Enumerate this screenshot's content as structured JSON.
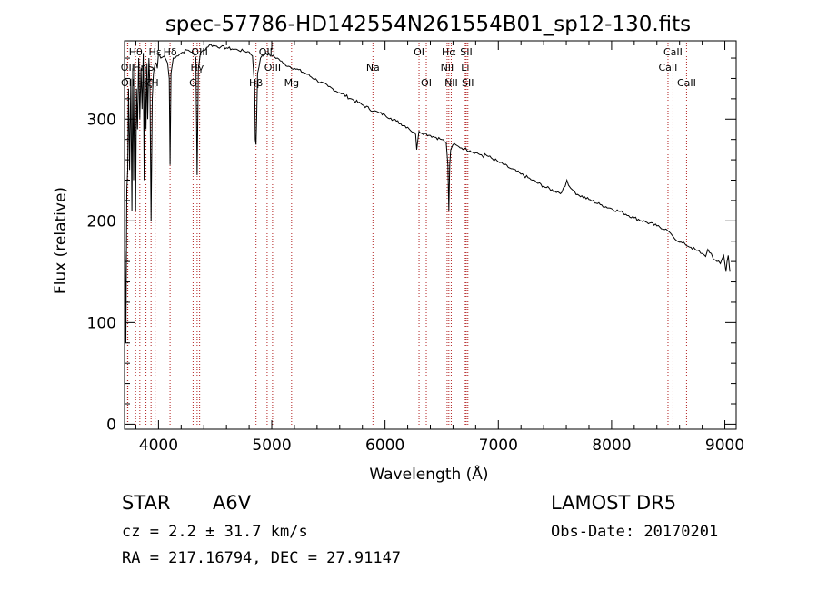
{
  "chart_data": {
    "type": "line",
    "title": "spec-57786-HD142554N261554B01_sp12-130.fits",
    "xlabel": "Wavelength (Å)",
    "ylabel": "Flux (relative)",
    "xlim": [
      3700,
      9100
    ],
    "ylim": [
      -5,
      377
    ],
    "xticks": [
      4000,
      5000,
      6000,
      7000,
      8000,
      9000
    ],
    "xtick_labels": [
      "4000",
      "5000",
      "6000",
      "7000",
      "8000",
      "9000"
    ],
    "yticks": [
      0,
      100,
      200,
      300
    ],
    "ytick_labels": [
      "0",
      "100",
      "200",
      "300"
    ],
    "grid": false,
    "line_color": "#000000",
    "marker_color": "#b22222",
    "series": [
      {
        "x": [
          3700,
          3705,
          3712,
          3720,
          3728,
          3735,
          3745,
          3755,
          3765,
          3772,
          3780,
          3790,
          3798,
          3806,
          3815,
          3825,
          3835,
          3845,
          3855,
          3865,
          3873,
          3880,
          3889,
          3898,
          3905,
          3915,
          3925,
          3934,
          3945,
          3955,
          3962,
          3970,
          3980,
          3990,
          4000,
          4020,
          4050,
          4080,
          4095,
          4102,
          4110,
          4130,
          4160,
          4200,
          4250,
          4300,
          4330,
          4341,
          4352,
          4370,
          4400,
          4450,
          4500,
          4550,
          4600,
          4650,
          4700,
          4750,
          4800,
          4830,
          4850,
          4855,
          4861,
          4867,
          4875,
          4900,
          4950,
          5000,
          5050,
          5100,
          5150,
          5200,
          5300,
          5400,
          5500,
          5600,
          5700,
          5800,
          5900,
          5950,
          6000,
          6050,
          6100,
          6200,
          6270,
          6280,
          6290,
          6300,
          6350,
          6400,
          6450,
          6500,
          6540,
          6555,
          6563,
          6571,
          6580,
          6600,
          6650,
          6700,
          6750,
          6800,
          6850,
          6870,
          6880,
          6900,
          7000,
          7100,
          7200,
          7300,
          7400,
          7500,
          7560,
          7590,
          7605,
          7620,
          7640,
          7660,
          7700,
          7800,
          7900,
          8000,
          8100,
          8200,
          8300,
          8400,
          8480,
          8500,
          8520,
          8540,
          8560,
          8580,
          8600,
          8650,
          8700,
          8750,
          8800,
          8830,
          8850,
          8880,
          8900,
          8930,
          8960,
          8990,
          9010,
          9020,
          9030,
          9040,
          9045
        ],
        "y": [
          0,
          170,
          80,
          230,
          250,
          330,
          250,
          340,
          210,
          350,
          240,
          355,
          210,
          330,
          290,
          360,
          300,
          350,
          310,
          365,
          240,
          355,
          290,
          355,
          300,
          360,
          330,
          200,
          320,
          345,
          350,
          355,
          355,
          350,
          365,
          360,
          362,
          355,
          340,
          255,
          345,
          360,
          362,
          365,
          368,
          366,
          360,
          245,
          350,
          365,
          368,
          373,
          372,
          371,
          370,
          369,
          368,
          367,
          366,
          362,
          330,
          280,
          275,
          300,
          345,
          360,
          365,
          362,
          360,
          355,
          352,
          350,
          345,
          338,
          332,
          326,
          320,
          314,
          308,
          306,
          304,
          301,
          298,
          292,
          285,
          270,
          280,
          288,
          286,
          284,
          282,
          280,
          277,
          255,
          210,
          255,
          270,
          275,
          273,
          271,
          269,
          267,
          265,
          262,
          266,
          264,
          258,
          252,
          246,
          240,
          234,
          229,
          228,
          234,
          240,
          235,
          232,
          230,
          226,
          221,
          216,
          212,
          208,
          203,
          199,
          195,
          192,
          190,
          188,
          185,
          182,
          180,
          179,
          177,
          174,
          171,
          168,
          165,
          172,
          168,
          162,
          160,
          158,
          166,
          150,
          160,
          166,
          155,
          150
        ]
      }
    ],
    "line_markers": [
      {
        "label": "Hθ",
        "wavelength": 3798,
        "row": 0
      },
      {
        "label": "OII",
        "wavelength": 3727,
        "row": 1
      },
      {
        "label": "OII",
        "wavelength": 3729,
        "row": 2
      },
      {
        "label": "Hη",
        "wavelength": 3835,
        "row": 1
      },
      {
        "label": "Hζ",
        "wavelength": 3889,
        "row": 2
      },
      {
        "label": "Hε",
        "wavelength": 3970,
        "row": 0
      },
      {
        "label": "S",
        "wavelength": 3934,
        "row": 1
      },
      {
        "label": "H",
        "wavelength": 3969,
        "row": 2
      },
      {
        "label": "Hδ",
        "wavelength": 4102,
        "row": 0
      },
      {
        "label": "OIII",
        "wavelength": 4363,
        "row": 0
      },
      {
        "label": "Hγ",
        "wavelength": 4341,
        "row": 1
      },
      {
        "label": "G",
        "wavelength": 4305,
        "row": 2
      },
      {
        "label": "OIII",
        "wavelength": 4959,
        "row": 0
      },
      {
        "label": "OIII",
        "wavelength": 5007,
        "row": 1
      },
      {
        "label": "Hβ",
        "wavelength": 4861,
        "row": 2
      },
      {
        "label": "Mg",
        "wavelength": 5175,
        "row": 2
      },
      {
        "label": "Na",
        "wavelength": 5893,
        "row": 1
      },
      {
        "label": "OI",
        "wavelength": 6300,
        "row": 0
      },
      {
        "label": "OI",
        "wavelength": 6364,
        "row": 2
      },
      {
        "label": "Hα",
        "wavelength": 6563,
        "row": 0
      },
      {
        "label": "NII",
        "wavelength": 6548,
        "row": 1
      },
      {
        "label": "NII",
        "wavelength": 6584,
        "row": 2
      },
      {
        "label": "SII",
        "wavelength": 6717,
        "row": 0
      },
      {
        "label": "Li",
        "wavelength": 6708,
        "row": 1
      },
      {
        "label": "SII",
        "wavelength": 6731,
        "row": 2
      },
      {
        "label": "CaII",
        "wavelength": 8542,
        "row": 0
      },
      {
        "label": "CaII",
        "wavelength": 8498,
        "row": 1
      },
      {
        "label": "CaII",
        "wavelength": 8662,
        "row": 2
      }
    ]
  },
  "footer": {
    "object_class": "STAR",
    "subclass": "A6V",
    "survey": "LAMOST DR5",
    "redshift": "cz = 2.2 ± 31.7 km/s",
    "obs_date": "Obs-Date: 20170201",
    "coords": "RA = 217.16794, DEC =  27.91147"
  }
}
